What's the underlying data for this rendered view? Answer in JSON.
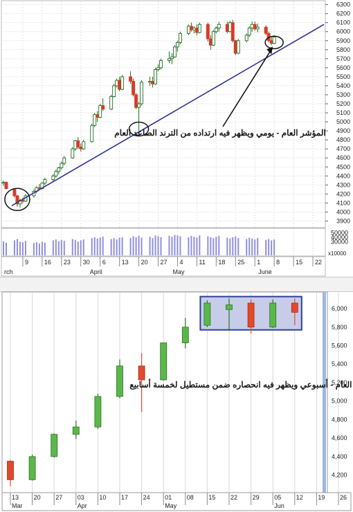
{
  "chart_data": [
    {
      "type": "candlestick",
      "period": "daily",
      "annotation": "المؤشر العام - يومي ويظهر فيه ارتداده من الترند الصاعد العام",
      "y_ticks": [
        3900,
        4000,
        4100,
        4200,
        4300,
        4400,
        4500,
        4600,
        4700,
        4800,
        4900,
        5000,
        5100,
        5200,
        5300,
        5400,
        5500,
        5600,
        5700,
        5800,
        5900,
        6000,
        6100,
        6200,
        6300
      ],
      "ylim": [
        3850,
        6320
      ],
      "x_labels": [
        {
          "label": "9",
          "day": 9
        },
        {
          "label": "16",
          "day": 16
        },
        {
          "label": "23",
          "day": 23
        },
        {
          "label": "30",
          "day": 30
        },
        {
          "label": "6",
          "day": 37
        },
        {
          "label": "13",
          "day": 44
        },
        {
          "label": "20",
          "day": 51
        },
        {
          "label": "27",
          "day": 58
        },
        {
          "label": "4",
          "day": 65
        },
        {
          "label": "11",
          "day": 72
        },
        {
          "label": "18",
          "day": 79
        },
        {
          "label": "25",
          "day": 86
        },
        {
          "label": "1",
          "day": 93
        },
        {
          "label": "8",
          "day": 100
        },
        {
          "label": "15",
          "day": 107
        },
        {
          "label": "22",
          "day": 114
        }
      ],
      "months": [
        {
          "label": "rch",
          "day": 2
        },
        {
          "label": "April",
          "day": 33
        },
        {
          "label": "May",
          "day": 63
        },
        {
          "label": "June",
          "day": 94
        }
      ],
      "xlim": [
        2,
        118
      ],
      "volume_ticks": [
        30000,
        40000,
        50000
      ],
      "volume_unit": "x10000",
      "volume_ylim": [
        0,
        55000
      ],
      "candles": [
        {
          "d": 2,
          "o": 4320,
          "h": 4350,
          "l": 4290,
          "c": 4330
        },
        {
          "d": 3,
          "o": 4330,
          "h": 4340,
          "l": 4250,
          "c": 4260
        },
        {
          "d": 6,
          "o": 4250,
          "h": 4260,
          "l": 4160,
          "c": 4180
        },
        {
          "d": 7,
          "o": 4180,
          "h": 4190,
          "l": 4060,
          "c": 4090
        },
        {
          "d": 8,
          "o": 4090,
          "h": 4150,
          "l": 4050,
          "c": 4130
        },
        {
          "d": 9,
          "o": 4130,
          "h": 4160,
          "l": 4100,
          "c": 4120
        },
        {
          "d": 10,
          "o": 4120,
          "h": 4200,
          "l": 4110,
          "c": 4180
        },
        {
          "d": 13,
          "o": 4180,
          "h": 4250,
          "l": 4160,
          "c": 4230
        },
        {
          "d": 14,
          "o": 4230,
          "h": 4290,
          "l": 4210,
          "c": 4270
        },
        {
          "d": 15,
          "o": 4270,
          "h": 4310,
          "l": 4240,
          "c": 4260
        },
        {
          "d": 16,
          "o": 4260,
          "h": 4330,
          "l": 4250,
          "c": 4320
        },
        {
          "d": 17,
          "o": 4320,
          "h": 4380,
          "l": 4300,
          "c": 4360
        },
        {
          "d": 20,
          "o": 4360,
          "h": 4420,
          "l": 4340,
          "c": 4400
        },
        {
          "d": 21,
          "o": 4400,
          "h": 4470,
          "l": 4380,
          "c": 4450
        },
        {
          "d": 22,
          "o": 4450,
          "h": 4500,
          "l": 4420,
          "c": 4490
        },
        {
          "d": 23,
          "o": 4490,
          "h": 4560,
          "l": 4470,
          "c": 4540
        },
        {
          "d": 24,
          "o": 4540,
          "h": 4620,
          "l": 4520,
          "c": 4600
        },
        {
          "d": 27,
          "o": 4600,
          "h": 4720,
          "l": 4590,
          "c": 4700
        },
        {
          "d": 28,
          "o": 4700,
          "h": 4800,
          "l": 4680,
          "c": 4790
        },
        {
          "d": 29,
          "o": 4790,
          "h": 4830,
          "l": 4700,
          "c": 4720
        },
        {
          "d": 30,
          "o": 4720,
          "h": 4760,
          "l": 4670,
          "c": 4700
        },
        {
          "d": 31,
          "o": 4700,
          "h": 4800,
          "l": 4690,
          "c": 4780
        },
        {
          "d": 34,
          "o": 4780,
          "h": 4980,
          "l": 4770,
          "c": 4960
        },
        {
          "d": 35,
          "o": 4960,
          "h": 5100,
          "l": 4940,
          "c": 5080
        },
        {
          "d": 36,
          "o": 5080,
          "h": 5120,
          "l": 5000,
          "c": 5050
        },
        {
          "d": 37,
          "o": 5050,
          "h": 5200,
          "l": 5040,
          "c": 5180
        },
        {
          "d": 38,
          "o": 5180,
          "h": 5260,
          "l": 5120,
          "c": 5140
        },
        {
          "d": 41,
          "o": 5140,
          "h": 5300,
          "l": 5130,
          "c": 5280
        },
        {
          "d": 42,
          "o": 5280,
          "h": 5420,
          "l": 5270,
          "c": 5400
        },
        {
          "d": 43,
          "o": 5400,
          "h": 5480,
          "l": 5380,
          "c": 5460
        },
        {
          "d": 44,
          "o": 5460,
          "h": 5500,
          "l": 5340,
          "c": 5360
        },
        {
          "d": 45,
          "o": 5360,
          "h": 5520,
          "l": 5350,
          "c": 5500
        },
        {
          "d": 48,
          "o": 5500,
          "h": 5560,
          "l": 5420,
          "c": 5450
        },
        {
          "d": 49,
          "o": 5450,
          "h": 5480,
          "l": 5280,
          "c": 5300
        },
        {
          "d": 50,
          "o": 5300,
          "h": 5320,
          "l": 5140,
          "c": 5160
        },
        {
          "d": 51,
          "o": 5160,
          "h": 5220,
          "l": 4900,
          "c": 5200
        },
        {
          "d": 52,
          "o": 5200,
          "h": 5460,
          "l": 5180,
          "c": 5440
        },
        {
          "d": 55,
          "o": 5440,
          "h": 5500,
          "l": 5400,
          "c": 5450
        },
        {
          "d": 56,
          "o": 5450,
          "h": 5500,
          "l": 5380,
          "c": 5420
        },
        {
          "d": 57,
          "o": 5420,
          "h": 5600,
          "l": 5410,
          "c": 5580
        },
        {
          "d": 58,
          "o": 5580,
          "h": 5640,
          "l": 5560,
          "c": 5600
        },
        {
          "d": 59,
          "o": 5600,
          "h": 5700,
          "l": 5580,
          "c": 5680
        },
        {
          "d": 62,
          "o": 5680,
          "h": 5780,
          "l": 5650,
          "c": 5700
        },
        {
          "d": 63,
          "o": 5700,
          "h": 5760,
          "l": 5640,
          "c": 5720
        },
        {
          "d": 64,
          "o": 5720,
          "h": 5850,
          "l": 5710,
          "c": 5830
        },
        {
          "d": 65,
          "o": 5830,
          "h": 5900,
          "l": 5780,
          "c": 5880
        },
        {
          "d": 66,
          "o": 5880,
          "h": 6000,
          "l": 5860,
          "c": 5980
        },
        {
          "d": 69,
          "o": 5980,
          "h": 6080,
          "l": 5960,
          "c": 6060
        },
        {
          "d": 70,
          "o": 6060,
          "h": 6100,
          "l": 6000,
          "c": 6020
        },
        {
          "d": 71,
          "o": 6020,
          "h": 6060,
          "l": 5980,
          "c": 6040
        },
        {
          "d": 72,
          "o": 6040,
          "h": 6080,
          "l": 5960,
          "c": 5990
        },
        {
          "d": 73,
          "o": 5990,
          "h": 6100,
          "l": 5980,
          "c": 6080
        },
        {
          "d": 76,
          "o": 6080,
          "h": 6100,
          "l": 5890,
          "c": 5920
        },
        {
          "d": 77,
          "o": 5920,
          "h": 5960,
          "l": 5800,
          "c": 5850
        },
        {
          "d": 78,
          "o": 5850,
          "h": 6020,
          "l": 5840,
          "c": 6000
        },
        {
          "d": 79,
          "o": 6000,
          "h": 6060,
          "l": 5980,
          "c": 6040
        },
        {
          "d": 80,
          "o": 6040,
          "h": 6110,
          "l": 6000,
          "c": 6080
        },
        {
          "d": 83,
          "o": 6080,
          "h": 6110,
          "l": 5980,
          "c": 6000
        },
        {
          "d": 84,
          "o": 6000,
          "h": 6120,
          "l": 5990,
          "c": 6100
        },
        {
          "d": 85,
          "o": 6100,
          "h": 6130,
          "l": 5880,
          "c": 5900
        },
        {
          "d": 86,
          "o": 5900,
          "h": 5910,
          "l": 5740,
          "c": 5760
        },
        {
          "d": 87,
          "o": 5760,
          "h": 5920,
          "l": 5750,
          "c": 5900
        },
        {
          "d": 90,
          "o": 5900,
          "h": 5980,
          "l": 5880,
          "c": 5960
        },
        {
          "d": 91,
          "o": 5960,
          "h": 6060,
          "l": 5940,
          "c": 6040
        },
        {
          "d": 92,
          "o": 6040,
          "h": 6110,
          "l": 6000,
          "c": 6080
        },
        {
          "d": 93,
          "o": 6080,
          "h": 6110,
          "l": 6010,
          "c": 6030
        },
        {
          "d": 94,
          "o": 6030,
          "h": 6090,
          "l": 5990,
          "c": 6050
        },
        {
          "d": 97,
          "o": 6050,
          "h": 6070,
          "l": 5960,
          "c": 5980
        },
        {
          "d": 98,
          "o": 5980,
          "h": 6000,
          "l": 5880,
          "c": 5900
        },
        {
          "d": 99,
          "o": 5900,
          "h": 5940,
          "l": 5850,
          "c": 5870
        },
        {
          "d": 100,
          "o": 5870,
          "h": 5960,
          "l": 5860,
          "c": 5940
        }
      ],
      "volume": [
        {
          "d": 2,
          "v": 31000
        },
        {
          "d": 3,
          "v": 28000
        },
        {
          "d": 6,
          "v": 33000
        },
        {
          "d": 7,
          "v": 36000
        },
        {
          "d": 8,
          "v": 30000
        },
        {
          "d": 9,
          "v": 29000
        },
        {
          "d": 10,
          "v": 32000
        },
        {
          "d": 13,
          "v": 27000
        },
        {
          "d": 14,
          "v": 29000
        },
        {
          "d": 15,
          "v": 26000
        },
        {
          "d": 16,
          "v": 30000
        },
        {
          "d": 17,
          "v": 28000
        },
        {
          "d": 20,
          "v": 33000
        },
        {
          "d": 21,
          "v": 35000
        },
        {
          "d": 22,
          "v": 31000
        },
        {
          "d": 23,
          "v": 34000
        },
        {
          "d": 24,
          "v": 32000
        },
        {
          "d": 27,
          "v": 36000
        },
        {
          "d": 28,
          "v": 34000
        },
        {
          "d": 29,
          "v": 30000
        },
        {
          "d": 30,
          "v": 33000
        },
        {
          "d": 31,
          "v": 35000
        },
        {
          "d": 34,
          "v": 38000
        },
        {
          "d": 35,
          "v": 40000
        },
        {
          "d": 36,
          "v": 37000
        },
        {
          "d": 37,
          "v": 39000
        },
        {
          "d": 38,
          "v": 41000
        },
        {
          "d": 41,
          "v": 36000
        },
        {
          "d": 42,
          "v": 38000
        },
        {
          "d": 43,
          "v": 35000
        },
        {
          "d": 44,
          "v": 39000
        },
        {
          "d": 45,
          "v": 40000
        },
        {
          "d": 48,
          "v": 38000
        },
        {
          "d": 49,
          "v": 42000
        },
        {
          "d": 50,
          "v": 40000
        },
        {
          "d": 51,
          "v": 43000
        },
        {
          "d": 52,
          "v": 39000
        },
        {
          "d": 55,
          "v": 41000
        },
        {
          "d": 56,
          "v": 38000
        },
        {
          "d": 57,
          "v": 44000
        },
        {
          "d": 58,
          "v": 42000
        },
        {
          "d": 59,
          "v": 40000
        },
        {
          "d": 62,
          "v": 43000
        },
        {
          "d": 63,
          "v": 41000
        },
        {
          "d": 64,
          "v": 45000
        },
        {
          "d": 65,
          "v": 44000
        },
        {
          "d": 66,
          "v": 42000
        },
        {
          "d": 69,
          "v": 40000
        },
        {
          "d": 70,
          "v": 43000
        },
        {
          "d": 71,
          "v": 41000
        },
        {
          "d": 72,
          "v": 39000
        },
        {
          "d": 73,
          "v": 44000
        },
        {
          "d": 76,
          "v": 42000
        },
        {
          "d": 77,
          "v": 40000
        },
        {
          "d": 78,
          "v": 38000
        },
        {
          "d": 79,
          "v": 41000
        },
        {
          "d": 80,
          "v": 43000
        },
        {
          "d": 83,
          "v": 39000
        },
        {
          "d": 84,
          "v": 37000
        },
        {
          "d": 85,
          "v": 40000
        },
        {
          "d": 86,
          "v": 42000
        },
        {
          "d": 87,
          "v": 38000
        },
        {
          "d": 90,
          "v": 36000
        },
        {
          "d": 91,
          "v": 39000
        },
        {
          "d": 92,
          "v": 37000
        },
        {
          "d": 93,
          "v": 35000
        },
        {
          "d": 94,
          "v": 38000
        },
        {
          "d": 97,
          "v": 34000
        },
        {
          "d": 98,
          "v": 36000
        },
        {
          "d": 99,
          "v": 33000
        },
        {
          "d": 100,
          "v": 35000
        }
      ],
      "trendline": [
        {
          "d": 5,
          "y": 4070
        },
        {
          "d": 118,
          "y": 6080
        }
      ],
      "circles": [
        {
          "d": 7,
          "y": 4140
        },
        {
          "d": 51,
          "y": 4920
        },
        {
          "d": 100,
          "y": 5880
        }
      ],
      "colors": {
        "up": "#3a8a3a",
        "down": "#d93a2a",
        "trend": "#2e3192",
        "volume": "#8f8fe0",
        "grid": "#e0e0e0"
      }
    },
    {
      "type": "candlestick",
      "period": "weekly",
      "annotation": "المؤشر العام - أسبوعي ويظهر فيه انحصاره ضمن مستطيل لخمسة أسابيع",
      "y_ticks": [
        4200,
        4400,
        4600,
        4800,
        5000,
        5200,
        5400,
        5600,
        5800,
        6000
      ],
      "ylim": [
        4040,
        6120
      ],
      "x_labels": [
        "13",
        "20",
        "27",
        "03",
        "10",
        "17",
        "24",
        "01",
        "08",
        "15",
        "22",
        "29",
        "05",
        "12",
        "19",
        "26"
      ],
      "months": [
        {
          "label": "Mar",
          "index": 0
        },
        {
          "label": "Apr",
          "index": 3
        },
        {
          "label": "May",
          "index": 7
        },
        {
          "label": "Jun",
          "index": 12
        }
      ],
      "candles": [
        {
          "i": 0,
          "o": 4350,
          "h": 4360,
          "l": 4080,
          "c": 4150
        },
        {
          "i": 1,
          "o": 4150,
          "h": 4420,
          "l": 4140,
          "c": 4400
        },
        {
          "i": 2,
          "o": 4400,
          "h": 4650,
          "l": 4390,
          "c": 4640
        },
        {
          "i": 3,
          "o": 4640,
          "h": 4790,
          "l": 4590,
          "c": 4720
        },
        {
          "i": 4,
          "o": 4720,
          "h": 5080,
          "l": 4700,
          "c": 5050
        },
        {
          "i": 5,
          "o": 5050,
          "h": 5450,
          "l": 5030,
          "c": 5380
        },
        {
          "i": 6,
          "o": 5380,
          "h": 5520,
          "l": 4880,
          "c": 5230
        },
        {
          "i": 7,
          "o": 5230,
          "h": 5630,
          "l": 5220,
          "c": 5630
        },
        {
          "i": 8,
          "o": 5630,
          "h": 5900,
          "l": 5570,
          "c": 5800
        },
        {
          "i": 9,
          "o": 5820,
          "h": 6090,
          "l": 5800,
          "c": 6060
        },
        {
          "i": 10,
          "o": 5990,
          "h": 6110,
          "l": 5760,
          "c": 6040
        },
        {
          "i": 11,
          "o": 6060,
          "h": 6100,
          "l": 5730,
          "c": 5800
        },
        {
          "i": 12,
          "o": 5800,
          "h": 6100,
          "l": 5790,
          "c": 6060
        },
        {
          "i": 13,
          "o": 6060,
          "h": 6110,
          "l": 5820,
          "c": 5960
        }
      ],
      "rectangle": {
        "i_from": 9,
        "i_to": 13,
        "y_from": 5770,
        "y_to": 6130
      },
      "colors": {
        "up": "#5ab84a",
        "down": "#e04a2a",
        "rect": "#2f3f9e",
        "grid": "#d8d8d8",
        "right_bar": "#9db9e0"
      }
    }
  ]
}
